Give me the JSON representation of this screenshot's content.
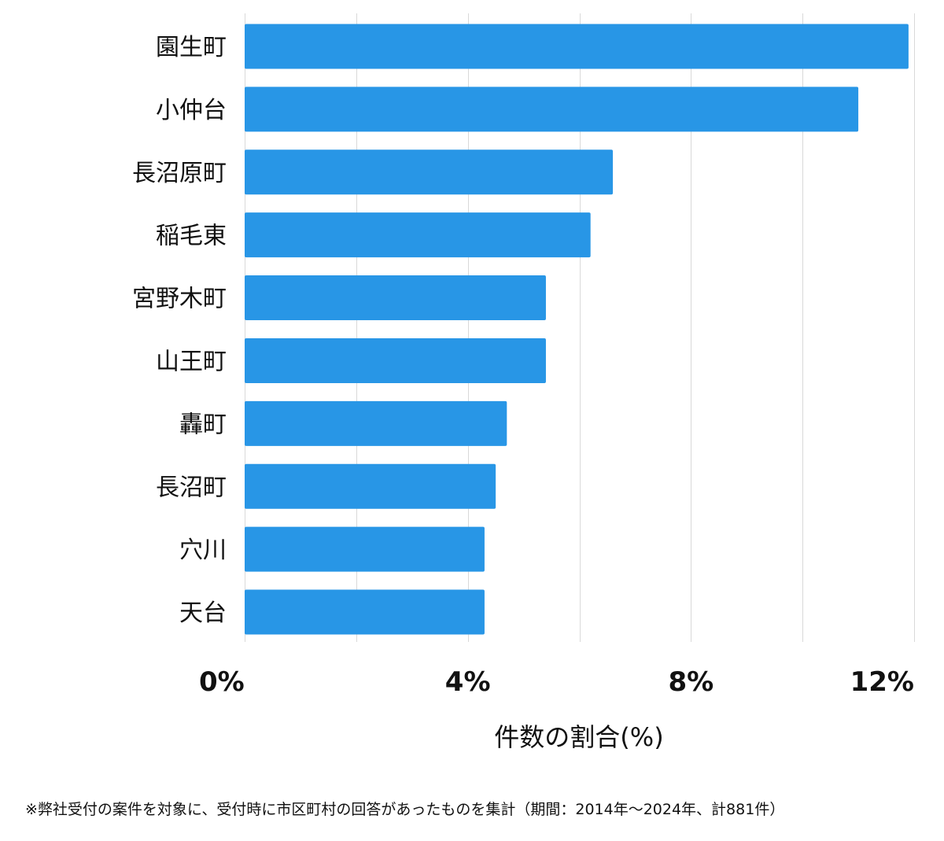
{
  "chart_data": {
    "type": "bar",
    "orientation": "horizontal",
    "categories": [
      "園生町",
      "小仲台",
      "長沼原町",
      "稲毛東",
      "宮野木町",
      "山王町",
      "轟町",
      "長沼町",
      "穴川",
      "天台"
    ],
    "values": [
      11.9,
      11.0,
      6.6,
      6.2,
      5.4,
      5.4,
      4.7,
      4.5,
      4.3,
      4.3
    ],
    "xlabel": "件数の割合(%)",
    "ylabel": "",
    "xlim": [
      0,
      12
    ],
    "xticks": [
      0,
      4,
      8,
      12
    ],
    "xtick_labels": [
      "0%",
      "4%",
      "8%",
      "12%"
    ],
    "grid": true,
    "bar_color": "#2896e6",
    "grid_color": "#d9d9d9"
  },
  "footnote": "※弊社受付の案件を対象に、受付時に市区町村の回答があったものを集計（期間：2014年～2024年、計881件）"
}
